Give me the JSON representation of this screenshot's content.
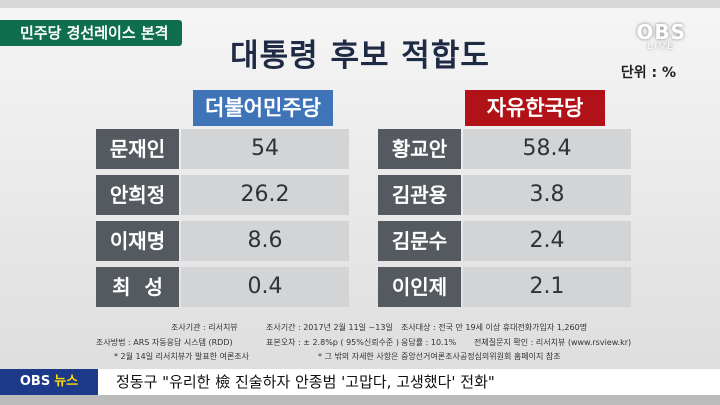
{
  "category": "민주당 경선레이스 본격",
  "title": "대통령 후보 적합도",
  "logo": {
    "big": "OBS",
    "small": "LIVE"
  },
  "unit": "단위 : %",
  "parties": [
    {
      "name": "더불어민주당",
      "candidates": [
        {
          "name": "문재인",
          "value": "54"
        },
        {
          "name": "안희정",
          "value": "26.2"
        },
        {
          "name": "이재명",
          "value": "8.6"
        },
        {
          "name": "최  성",
          "value": "0.4"
        }
      ]
    },
    {
      "name": "자유한국당",
      "candidates": [
        {
          "name": "황교안",
          "value": "58.4"
        },
        {
          "name": "김관용",
          "value": "3.8"
        },
        {
          "name": "김문수",
          "value": "2.4"
        },
        {
          "name": "이인제",
          "value": "2.1"
        }
      ]
    }
  ],
  "notes": {
    "agency": "조사기관 : 리서치뷰",
    "period": "조사기간 : 2017년 2월 11일 ~13일",
    "target": "조사대상 : 전국 만 19세 이상 휴대전화가입자 1,260명",
    "method": "조사방법 : ARS 자동응답 시스템 (RDD)",
    "error": "표본오차 : ± 2.8%p ( 95%신뢰수준 )",
    "response": "응답률 : 10.1%",
    "questionnaire": "전체질문지 확인 : 리서치뷰 (www.rsview.kr)",
    "footnote1": "* 2월 14일 리서치뷰가 발표한 여론조사",
    "footnote2": "* 그 밖의 자세한 사항은 중앙선거여론조사공정심의위원회 홈페이지 참조"
  },
  "ticker": {
    "logo": "OBS",
    "logo_sub": "뉴스",
    "headline": "정동구 \"유리한 檢 진술하자 안종범 '고맙다, 고생했다' 전화\""
  },
  "colors": {
    "dem": "#3f74b8",
    "lib": "#b01218",
    "category_bg": "#0e6e4e"
  }
}
